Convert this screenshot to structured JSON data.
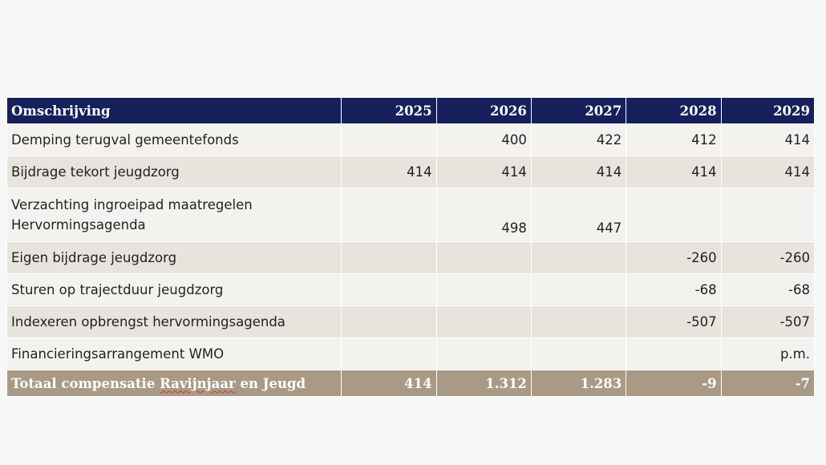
{
  "table": {
    "header": {
      "description_label": "Omschrijving",
      "years": [
        "2025",
        "2026",
        "2027",
        "2028",
        "2029"
      ]
    },
    "rows": [
      {
        "description": "Demping terugval gemeentefonds",
        "values": [
          "",
          "400",
          "422",
          "412",
          "414"
        ]
      },
      {
        "description": "Bijdrage tekort jeugdzorg",
        "values": [
          "414",
          "414",
          "414",
          "414",
          "414"
        ]
      },
      {
        "description": "Verzachting ingroeipad maatregelen Hervormingsagenda",
        "values": [
          "",
          "498",
          "447",
          "",
          ""
        ]
      },
      {
        "description": "Eigen bijdrage jeugdzorg",
        "values": [
          "",
          "",
          "",
          "-260",
          "-260"
        ]
      },
      {
        "description": "Sturen op trajectduur jeugdzorg",
        "values": [
          "",
          "",
          "",
          "-68",
          "-68"
        ]
      },
      {
        "description": "Indexeren opbrengst hervormingsagenda",
        "values": [
          "",
          "",
          "",
          "-507",
          "-507"
        ]
      },
      {
        "description": "Financieringsarrangement WMO",
        "values": [
          "",
          "",
          "",
          "",
          "p.m."
        ]
      }
    ],
    "total": {
      "label_part1": "Totaal compensatie ",
      "label_part2": "Ravijnjaar",
      "label_part3": " en Jeugd",
      "values": [
        "414",
        "1.312",
        "1.283",
        "-9",
        "-7"
      ]
    }
  },
  "colors": {
    "header_bg": "#16205a",
    "row_light": "#f3f2ef",
    "row_dark": "#e7e4de",
    "total_bg": "#a99a86"
  }
}
